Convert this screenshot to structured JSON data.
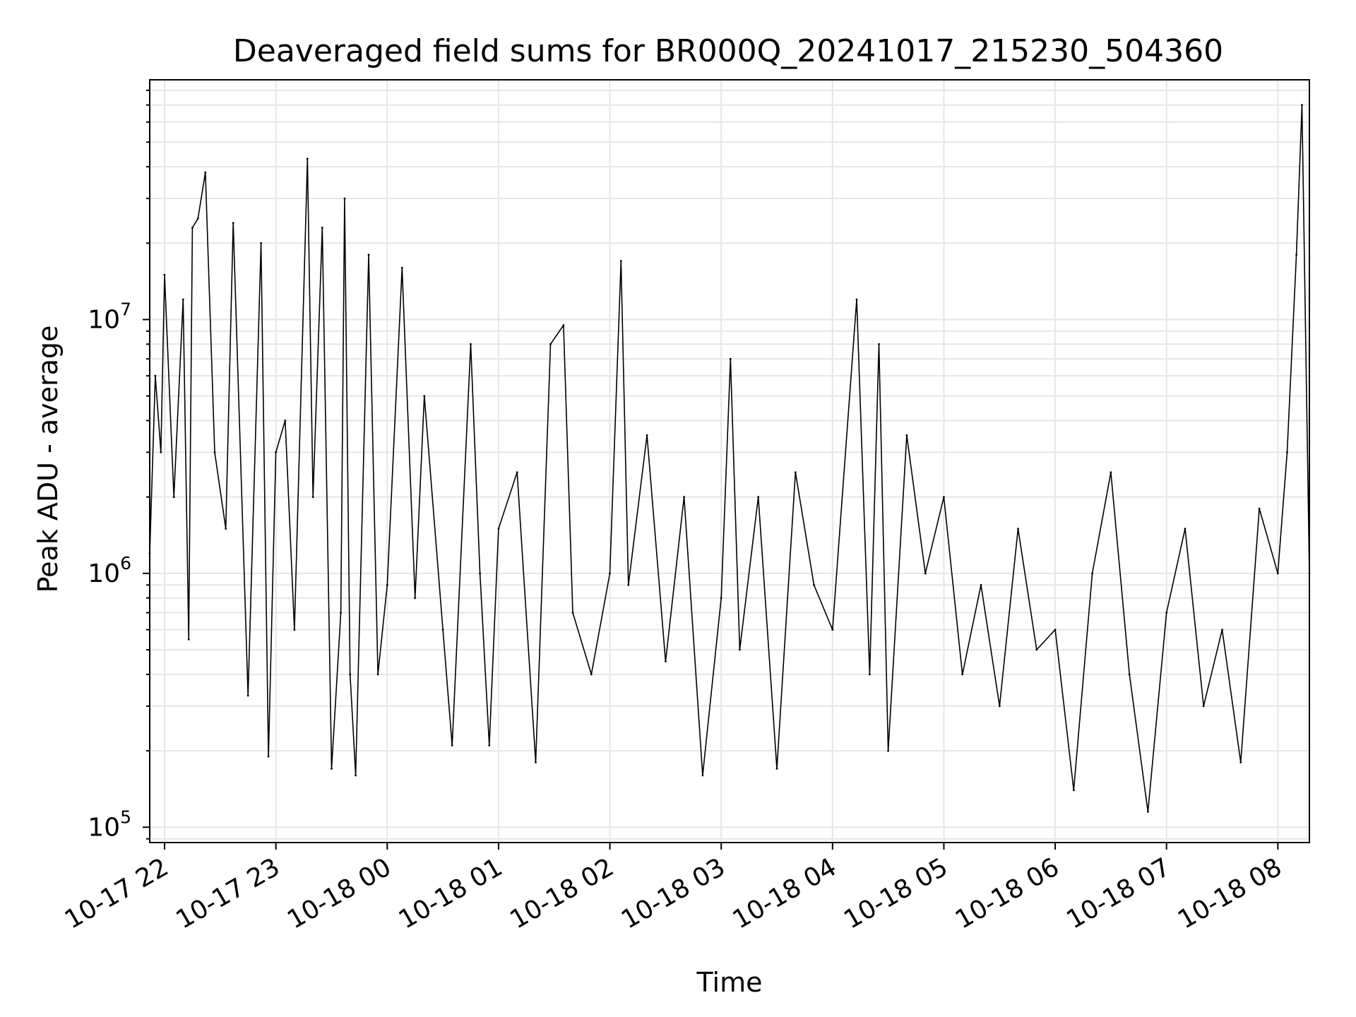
{
  "chart_data": {
    "type": "line",
    "title": "Deaveraged field sums for BR000Q_20241017_215230_504360",
    "xlabel": "Time",
    "ylabel": "Peak ADU - average",
    "yscale": "log",
    "xlim": [
      "2024-10-17 21:52",
      "2024-10-18 08:17"
    ],
    "ylim": [
      87000,
      88000000
    ],
    "grid": true,
    "x_ticks": [
      {
        "value": "2024-10-17 22:00",
        "label": "10-17 22"
      },
      {
        "value": "2024-10-17 23:00",
        "label": "10-17 23"
      },
      {
        "value": "2024-10-18 00:00",
        "label": "10-18 00"
      },
      {
        "value": "2024-10-18 01:00",
        "label": "10-18 01"
      },
      {
        "value": "2024-10-18 02:00",
        "label": "10-18 02"
      },
      {
        "value": "2024-10-18 03:00",
        "label": "10-18 03"
      },
      {
        "value": "2024-10-18 04:00",
        "label": "10-18 04"
      },
      {
        "value": "2024-10-18 05:00",
        "label": "10-18 05"
      },
      {
        "value": "2024-10-18 06:00",
        "label": "10-18 06"
      },
      {
        "value": "2024-10-18 07:00",
        "label": "10-18 07"
      },
      {
        "value": "2024-10-18 08:00",
        "label": "10-18 08"
      }
    ],
    "y_ticks": [
      {
        "value": 100000,
        "base": "10",
        "exp": "5"
      },
      {
        "value": 1000000,
        "base": "10",
        "exp": "6"
      },
      {
        "value": 10000000,
        "base": "10",
        "exp": "7"
      }
    ],
    "series": [
      {
        "color": "#000000",
        "points": [
          [
            "2024-10-17 21:52",
            1200000
          ],
          [
            "2024-10-17 21:55",
            6000000
          ],
          [
            "2024-10-17 21:58",
            3000000
          ],
          [
            "2024-10-17 22:00",
            15000000
          ],
          [
            "2024-10-17 22:05",
            2000000
          ],
          [
            "2024-10-17 22:10",
            12000000
          ],
          [
            "2024-10-17 22:13",
            550000
          ],
          [
            "2024-10-17 22:15",
            23000000
          ],
          [
            "2024-10-17 22:18",
            25000000
          ],
          [
            "2024-10-17 22:22",
            38000000
          ],
          [
            "2024-10-17 22:27",
            3000000
          ],
          [
            "2024-10-17 22:33",
            1500000
          ],
          [
            "2024-10-17 22:37",
            24000000
          ],
          [
            "2024-10-17 22:45",
            330000
          ],
          [
            "2024-10-17 22:52",
            20000000
          ],
          [
            "2024-10-17 22:56",
            190000
          ],
          [
            "2024-10-17 23:00",
            3000000
          ],
          [
            "2024-10-17 23:05",
            4000000
          ],
          [
            "2024-10-17 23:10",
            600000
          ],
          [
            "2024-10-17 23:17",
            43000000
          ],
          [
            "2024-10-17 23:20",
            2000000
          ],
          [
            "2024-10-17 23:25",
            23000000
          ],
          [
            "2024-10-17 23:30",
            170000
          ],
          [
            "2024-10-17 23:35",
            700000
          ],
          [
            "2024-10-17 23:37",
            30000000
          ],
          [
            "2024-10-17 23:40",
            400000
          ],
          [
            "2024-10-17 23:43",
            160000
          ],
          [
            "2024-10-17 23:50",
            18000000
          ],
          [
            "2024-10-17 23:55",
            400000
          ],
          [
            "2024-10-18 00:00",
            900000
          ],
          [
            "2024-10-18 00:08",
            16000000
          ],
          [
            "2024-10-18 00:15",
            800000
          ],
          [
            "2024-10-18 00:20",
            5000000
          ],
          [
            "2024-10-18 00:30",
            600000
          ],
          [
            "2024-10-18 00:35",
            210000
          ],
          [
            "2024-10-18 00:45",
            8000000
          ],
          [
            "2024-10-18 00:50",
            1000000
          ],
          [
            "2024-10-18 00:55",
            210000
          ],
          [
            "2024-10-18 01:00",
            1500000
          ],
          [
            "2024-10-18 01:10",
            2500000
          ],
          [
            "2024-10-18 01:20",
            180000
          ],
          [
            "2024-10-18 01:28",
            8000000
          ],
          [
            "2024-10-18 01:35",
            9500000
          ],
          [
            "2024-10-18 01:40",
            700000
          ],
          [
            "2024-10-18 01:50",
            400000
          ],
          [
            "2024-10-18 02:00",
            1000000
          ],
          [
            "2024-10-18 02:06",
            17000000
          ],
          [
            "2024-10-18 02:10",
            900000
          ],
          [
            "2024-10-18 02:20",
            3500000
          ],
          [
            "2024-10-18 02:30",
            450000
          ],
          [
            "2024-10-18 02:40",
            2000000
          ],
          [
            "2024-10-18 02:50",
            160000
          ],
          [
            "2024-10-18 03:00",
            800000
          ],
          [
            "2024-10-18 03:05",
            7000000
          ],
          [
            "2024-10-18 03:10",
            500000
          ],
          [
            "2024-10-18 03:20",
            2000000
          ],
          [
            "2024-10-18 03:30",
            170000
          ],
          [
            "2024-10-18 03:40",
            2500000
          ],
          [
            "2024-10-18 03:50",
            900000
          ],
          [
            "2024-10-18 04:00",
            600000
          ],
          [
            "2024-10-18 04:13",
            12000000
          ],
          [
            "2024-10-18 04:20",
            400000
          ],
          [
            "2024-10-18 04:25",
            8000000
          ],
          [
            "2024-10-18 04:30",
            200000
          ],
          [
            "2024-10-18 04:40",
            3500000
          ],
          [
            "2024-10-18 04:50",
            1000000
          ],
          [
            "2024-10-18 05:00",
            2000000
          ],
          [
            "2024-10-18 05:10",
            400000
          ],
          [
            "2024-10-18 05:20",
            900000
          ],
          [
            "2024-10-18 05:30",
            300000
          ],
          [
            "2024-10-18 05:40",
            1500000
          ],
          [
            "2024-10-18 05:50",
            500000
          ],
          [
            "2024-10-18 06:00",
            600000
          ],
          [
            "2024-10-18 06:10",
            140000
          ],
          [
            "2024-10-18 06:20",
            1000000
          ],
          [
            "2024-10-18 06:30",
            2500000
          ],
          [
            "2024-10-18 06:40",
            400000
          ],
          [
            "2024-10-18 06:50",
            115000
          ],
          [
            "2024-10-18 07:00",
            700000
          ],
          [
            "2024-10-18 07:10",
            1500000
          ],
          [
            "2024-10-18 07:20",
            300000
          ],
          [
            "2024-10-18 07:30",
            600000
          ],
          [
            "2024-10-18 07:40",
            180000
          ],
          [
            "2024-10-18 07:50",
            1800000
          ],
          [
            "2024-10-18 08:00",
            1000000
          ],
          [
            "2024-10-18 08:05",
            3000000
          ],
          [
            "2024-10-18 08:10",
            18000000
          ],
          [
            "2024-10-18 08:13",
            70000000
          ],
          [
            "2024-10-18 08:17",
            1000000
          ]
        ]
      }
    ]
  }
}
